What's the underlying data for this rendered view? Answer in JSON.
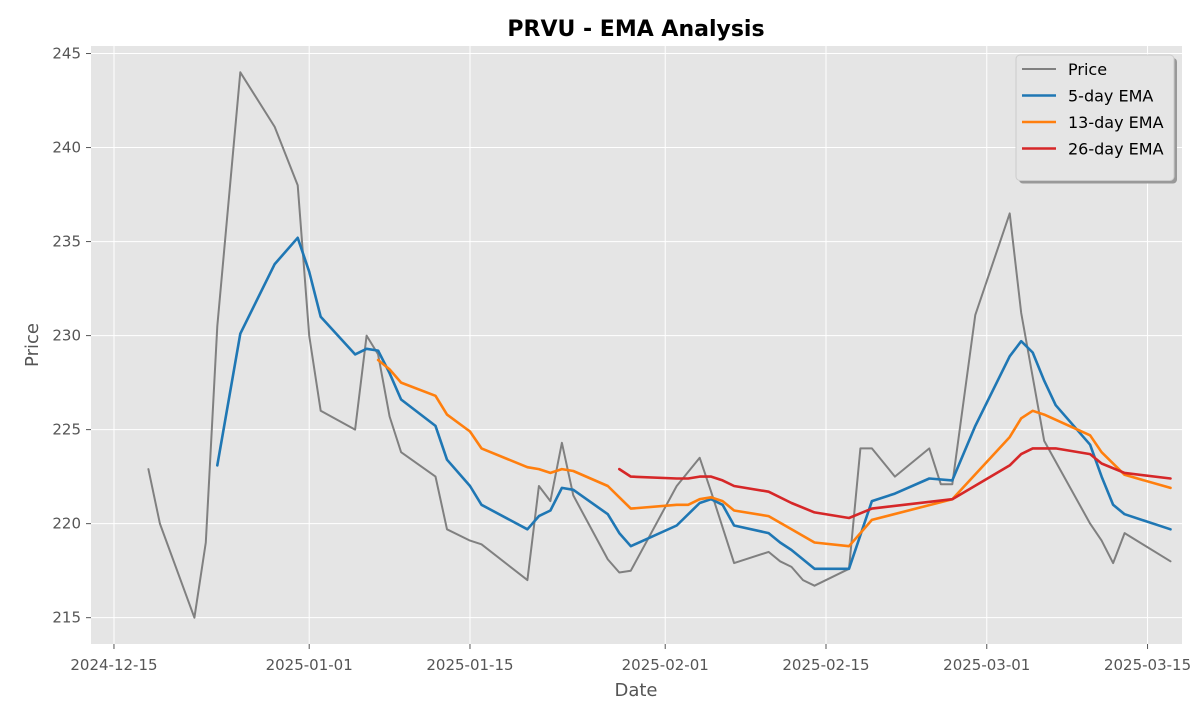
{
  "chart_data": {
    "type": "line",
    "title": "PRVU - EMA Analysis",
    "xlabel": "Date",
    "ylabel": "Price",
    "xlim": [
      "2024-12-13",
      "2025-03-18"
    ],
    "ylim": [
      213.6,
      245.4
    ],
    "xticks": [
      "2024-12-15",
      "2025-01-01",
      "2025-01-15",
      "2025-02-01",
      "2025-02-15",
      "2025-03-01",
      "2025-03-15"
    ],
    "yticks": [
      215,
      220,
      225,
      230,
      235,
      240,
      245
    ],
    "grid": true,
    "legend_position": "top-right",
    "series": [
      {
        "name": "Price",
        "color": "#808080",
        "points": [
          [
            "2024-12-18",
            222.9
          ],
          [
            "2024-12-19",
            220.0
          ],
          [
            "2024-12-22",
            215.0
          ],
          [
            "2024-12-23",
            219.0
          ],
          [
            "2024-12-24",
            230.5
          ],
          [
            "2024-12-26",
            244.0
          ],
          [
            "2024-12-29",
            241.1
          ],
          [
            "2024-12-31",
            238.0
          ],
          [
            "2025-01-01",
            230.0
          ],
          [
            "2025-01-02",
            226.0
          ],
          [
            "2025-01-05",
            225.0
          ],
          [
            "2025-01-06",
            230.0
          ],
          [
            "2025-01-07",
            229.0
          ],
          [
            "2025-01-08",
            225.7
          ],
          [
            "2025-01-09",
            223.8
          ],
          [
            "2025-01-12",
            222.5
          ],
          [
            "2025-01-13",
            219.7
          ],
          [
            "2025-01-15",
            219.1
          ],
          [
            "2025-01-16",
            218.9
          ],
          [
            "2025-01-20",
            217.0
          ],
          [
            "2025-01-21",
            222.0
          ],
          [
            "2025-01-22",
            221.2
          ],
          [
            "2025-01-23",
            224.3
          ],
          [
            "2025-01-24",
            221.5
          ],
          [
            "2025-01-27",
            218.1
          ],
          [
            "2025-01-28",
            217.4
          ],
          [
            "2025-01-29",
            217.5
          ],
          [
            "2025-02-02",
            222.0
          ],
          [
            "2025-02-04",
            223.5
          ],
          [
            "2025-02-05",
            221.7
          ],
          [
            "2025-02-07",
            217.9
          ],
          [
            "2025-02-10",
            218.5
          ],
          [
            "2025-02-11",
            218.0
          ],
          [
            "2025-02-12",
            217.7
          ],
          [
            "2025-02-13",
            217.0
          ],
          [
            "2025-02-14",
            216.7
          ],
          [
            "2025-02-17",
            217.6
          ],
          [
            "2025-02-18",
            224.0
          ],
          [
            "2025-02-19",
            224.0
          ],
          [
            "2025-02-21",
            222.5
          ],
          [
            "2025-02-24",
            224.0
          ],
          [
            "2025-02-25",
            222.1
          ],
          [
            "2025-02-26",
            222.1
          ],
          [
            "2025-02-28",
            231.1
          ],
          [
            "2025-03-03",
            236.5
          ],
          [
            "2025-03-04",
            231.2
          ],
          [
            "2025-03-06",
            224.4
          ],
          [
            "2025-03-10",
            220.0
          ],
          [
            "2025-03-11",
            219.1
          ],
          [
            "2025-03-12",
            217.9
          ],
          [
            "2025-03-13",
            219.5
          ],
          [
            "2025-03-17",
            218.0
          ]
        ]
      },
      {
        "name": "5-day EMA",
        "color": "#1f77b4",
        "points": [
          [
            "2024-12-24",
            223.1
          ],
          [
            "2024-12-26",
            230.1
          ],
          [
            "2024-12-29",
            233.8
          ],
          [
            "2024-12-31",
            235.2
          ],
          [
            "2025-01-01",
            233.4
          ],
          [
            "2025-01-02",
            231.0
          ],
          [
            "2025-01-05",
            229.0
          ],
          [
            "2025-01-06",
            229.3
          ],
          [
            "2025-01-07",
            229.2
          ],
          [
            "2025-01-08",
            228.0
          ],
          [
            "2025-01-09",
            226.6
          ],
          [
            "2025-01-12",
            225.2
          ],
          [
            "2025-01-13",
            223.4
          ],
          [
            "2025-01-15",
            222.0
          ],
          [
            "2025-01-16",
            221.0
          ],
          [
            "2025-01-20",
            219.7
          ],
          [
            "2025-01-21",
            220.4
          ],
          [
            "2025-01-22",
            220.7
          ],
          [
            "2025-01-23",
            221.9
          ],
          [
            "2025-01-24",
            221.8
          ],
          [
            "2025-01-27",
            220.5
          ],
          [
            "2025-01-28",
            219.5
          ],
          [
            "2025-01-29",
            218.8
          ],
          [
            "2025-02-02",
            219.9
          ],
          [
            "2025-02-04",
            221.1
          ],
          [
            "2025-02-05",
            221.3
          ],
          [
            "2025-02-06",
            221.0
          ],
          [
            "2025-02-07",
            219.9
          ],
          [
            "2025-02-10",
            219.5
          ],
          [
            "2025-02-11",
            219.0
          ],
          [
            "2025-02-12",
            218.6
          ],
          [
            "2025-02-13",
            218.1
          ],
          [
            "2025-02-14",
            217.6
          ],
          [
            "2025-02-17",
            217.6
          ],
          [
            "2025-02-19",
            221.2
          ],
          [
            "2025-02-21",
            221.6
          ],
          [
            "2025-02-24",
            222.4
          ],
          [
            "2025-02-26",
            222.3
          ],
          [
            "2025-02-28",
            225.2
          ],
          [
            "2025-03-03",
            228.9
          ],
          [
            "2025-03-04",
            229.7
          ],
          [
            "2025-03-05",
            229.1
          ],
          [
            "2025-03-06",
            227.6
          ],
          [
            "2025-03-07",
            226.3
          ],
          [
            "2025-03-10",
            224.2
          ],
          [
            "2025-03-11",
            222.5
          ],
          [
            "2025-03-12",
            221.0
          ],
          [
            "2025-03-13",
            220.5
          ],
          [
            "2025-03-17",
            219.7
          ]
        ]
      },
      {
        "name": "13-day EMA",
        "color": "#ff7f0e",
        "points": [
          [
            "2025-01-07",
            228.7
          ],
          [
            "2025-01-08",
            228.2
          ],
          [
            "2025-01-09",
            227.5
          ],
          [
            "2025-01-12",
            226.8
          ],
          [
            "2025-01-13",
            225.8
          ],
          [
            "2025-01-15",
            224.9
          ],
          [
            "2025-01-16",
            224.0
          ],
          [
            "2025-01-20",
            223.0
          ],
          [
            "2025-01-21",
            222.9
          ],
          [
            "2025-01-22",
            222.7
          ],
          [
            "2025-01-23",
            222.9
          ],
          [
            "2025-01-24",
            222.8
          ],
          [
            "2025-01-27",
            222.0
          ],
          [
            "2025-01-28",
            221.4
          ],
          [
            "2025-01-29",
            220.8
          ],
          [
            "2025-02-02",
            221.0
          ],
          [
            "2025-02-03",
            221.0
          ],
          [
            "2025-02-04",
            221.3
          ],
          [
            "2025-02-05",
            221.4
          ],
          [
            "2025-02-06",
            221.2
          ],
          [
            "2025-02-07",
            220.7
          ],
          [
            "2025-02-10",
            220.4
          ],
          [
            "2025-02-12",
            219.7
          ],
          [
            "2025-02-14",
            219.0
          ],
          [
            "2025-02-17",
            218.8
          ],
          [
            "2025-02-19",
            220.2
          ],
          [
            "2025-02-26",
            221.3
          ],
          [
            "2025-03-03",
            224.6
          ],
          [
            "2025-03-04",
            225.6
          ],
          [
            "2025-03-05",
            226.0
          ],
          [
            "2025-03-06",
            225.8
          ],
          [
            "2025-03-10",
            224.7
          ],
          [
            "2025-03-11",
            223.8
          ],
          [
            "2025-03-13",
            222.6
          ],
          [
            "2025-03-17",
            221.9
          ]
        ]
      },
      {
        "name": "26-day EMA",
        "color": "#d62728",
        "points": [
          [
            "2025-01-28",
            222.9
          ],
          [
            "2025-01-29",
            222.5
          ],
          [
            "2025-02-02",
            222.4
          ],
          [
            "2025-02-03",
            222.4
          ],
          [
            "2025-02-04",
            222.5
          ],
          [
            "2025-02-05",
            222.5
          ],
          [
            "2025-02-06",
            222.3
          ],
          [
            "2025-02-07",
            222.0
          ],
          [
            "2025-02-10",
            221.7
          ],
          [
            "2025-02-12",
            221.1
          ],
          [
            "2025-02-14",
            220.6
          ],
          [
            "2025-02-17",
            220.3
          ],
          [
            "2025-02-19",
            220.8
          ],
          [
            "2025-02-26",
            221.3
          ],
          [
            "2025-03-03",
            223.1
          ],
          [
            "2025-03-04",
            223.7
          ],
          [
            "2025-03-05",
            224.0
          ],
          [
            "2025-03-06",
            224.0
          ],
          [
            "2025-03-07",
            224.0
          ],
          [
            "2025-03-10",
            223.7
          ],
          [
            "2025-03-11",
            223.2
          ],
          [
            "2025-03-13",
            222.7
          ],
          [
            "2025-03-17",
            222.4
          ]
        ]
      }
    ]
  }
}
